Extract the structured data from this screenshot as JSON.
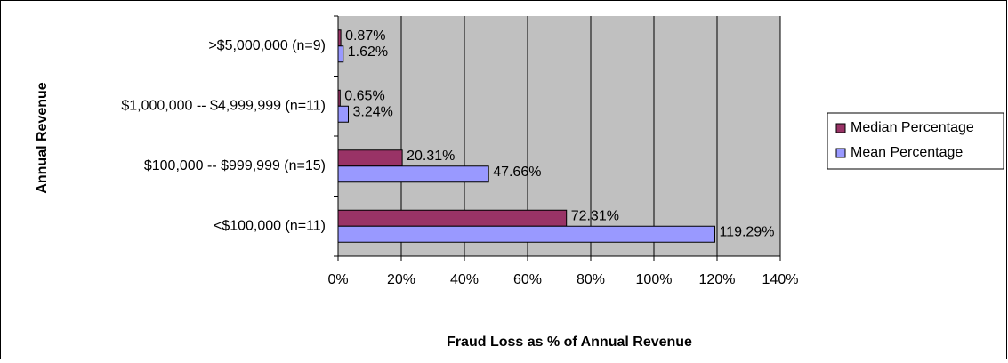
{
  "chart_data": {
    "type": "hbar",
    "y_label": "Annual Revenue",
    "x_label": "Fraud Loss as % of Annual Revenue",
    "categories": [
      ">$5,000,000 (n=9)",
      "$1,000,000 -- $4,999,999 (n=11)",
      "$100,000 -- $999,999 (n=15)",
      "<$100,000 (n=11)"
    ],
    "series": [
      {
        "name": "Median Percentage",
        "color": "#993366",
        "values": [
          0.87,
          0.65,
          20.31,
          72.31
        ],
        "value_labels": [
          "0.87%",
          "0.65%",
          "20.31%",
          "72.31%"
        ]
      },
      {
        "name": "Mean Percentage",
        "color": "#9999ff",
        "values": [
          1.62,
          3.24,
          47.66,
          119.29
        ],
        "value_labels": [
          "1.62%",
          "3.24%",
          "47.66%",
          "119.29%"
        ]
      }
    ],
    "xlim": [
      0,
      140
    ],
    "xticks": [
      {
        "value": 0,
        "label": "0%"
      },
      {
        "value": 20,
        "label": "20%"
      },
      {
        "value": 40,
        "label": "40%"
      },
      {
        "value": 60,
        "label": "60%"
      },
      {
        "value": 80,
        "label": "80%"
      },
      {
        "value": 100,
        "label": "100%"
      },
      {
        "value": 120,
        "label": "120%"
      },
      {
        "value": 140,
        "label": "140%"
      }
    ],
    "grid": true,
    "legend": "right"
  }
}
